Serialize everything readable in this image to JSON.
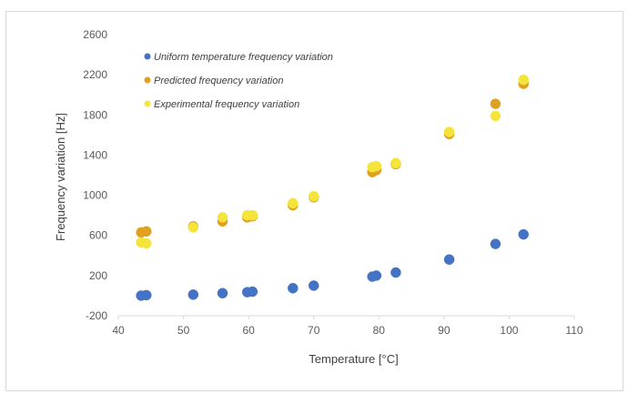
{
  "chart_data": {
    "type": "scatter",
    "xlabel": "Temperature [°C]",
    "ylabel": "Frequency variation [Hz]",
    "xlim": [
      40,
      110
    ],
    "ylim": [
      -200,
      2600
    ],
    "xticks": [
      40,
      50,
      60,
      70,
      80,
      90,
      100,
      110
    ],
    "yticks": [
      -200,
      200,
      600,
      1000,
      1400,
      1800,
      2200,
      2600
    ],
    "grid": {
      "horizontal": false,
      "vertical": false
    },
    "legend_position": "top-left",
    "series": [
      {
        "name": "Uniform temperature frequency variation",
        "color": "#4472c4",
        "points": [
          [
            43.5,
            0
          ],
          [
            44.3,
            5
          ],
          [
            51.5,
            10
          ],
          [
            56,
            25
          ],
          [
            59.8,
            35
          ],
          [
            60.6,
            40
          ],
          [
            66.8,
            75
          ],
          [
            70,
            100
          ],
          [
            79,
            190
          ],
          [
            79.6,
            200
          ],
          [
            82.6,
            230
          ],
          [
            90.8,
            360
          ],
          [
            97.9,
            515
          ],
          [
            102.2,
            610
          ]
        ]
      },
      {
        "name": "Predicted frequency variation",
        "color": "#e0a020",
        "points": [
          [
            43.5,
            630
          ],
          [
            44.3,
            640
          ],
          [
            51.5,
            690
          ],
          [
            56,
            740
          ],
          [
            59.8,
            780
          ],
          [
            60.6,
            790
          ],
          [
            66.8,
            900
          ],
          [
            70,
            980
          ],
          [
            79,
            1230
          ],
          [
            79.6,
            1250
          ],
          [
            82.6,
            1310
          ],
          [
            90.8,
            1610
          ],
          [
            97.9,
            1910
          ],
          [
            102.2,
            2110
          ]
        ]
      },
      {
        "name": "Experimental frequency variation",
        "color": "#f5e43a",
        "points": [
          [
            43.5,
            530
          ],
          [
            44.3,
            520
          ],
          [
            51.5,
            680
          ],
          [
            56,
            780
          ],
          [
            59.8,
            800
          ],
          [
            60.6,
            800
          ],
          [
            66.8,
            920
          ],
          [
            70,
            990
          ],
          [
            79,
            1280
          ],
          [
            79.6,
            1290
          ],
          [
            82.6,
            1320
          ],
          [
            90.8,
            1630
          ],
          [
            97.9,
            1790
          ],
          [
            102.2,
            2150
          ]
        ]
      }
    ]
  }
}
